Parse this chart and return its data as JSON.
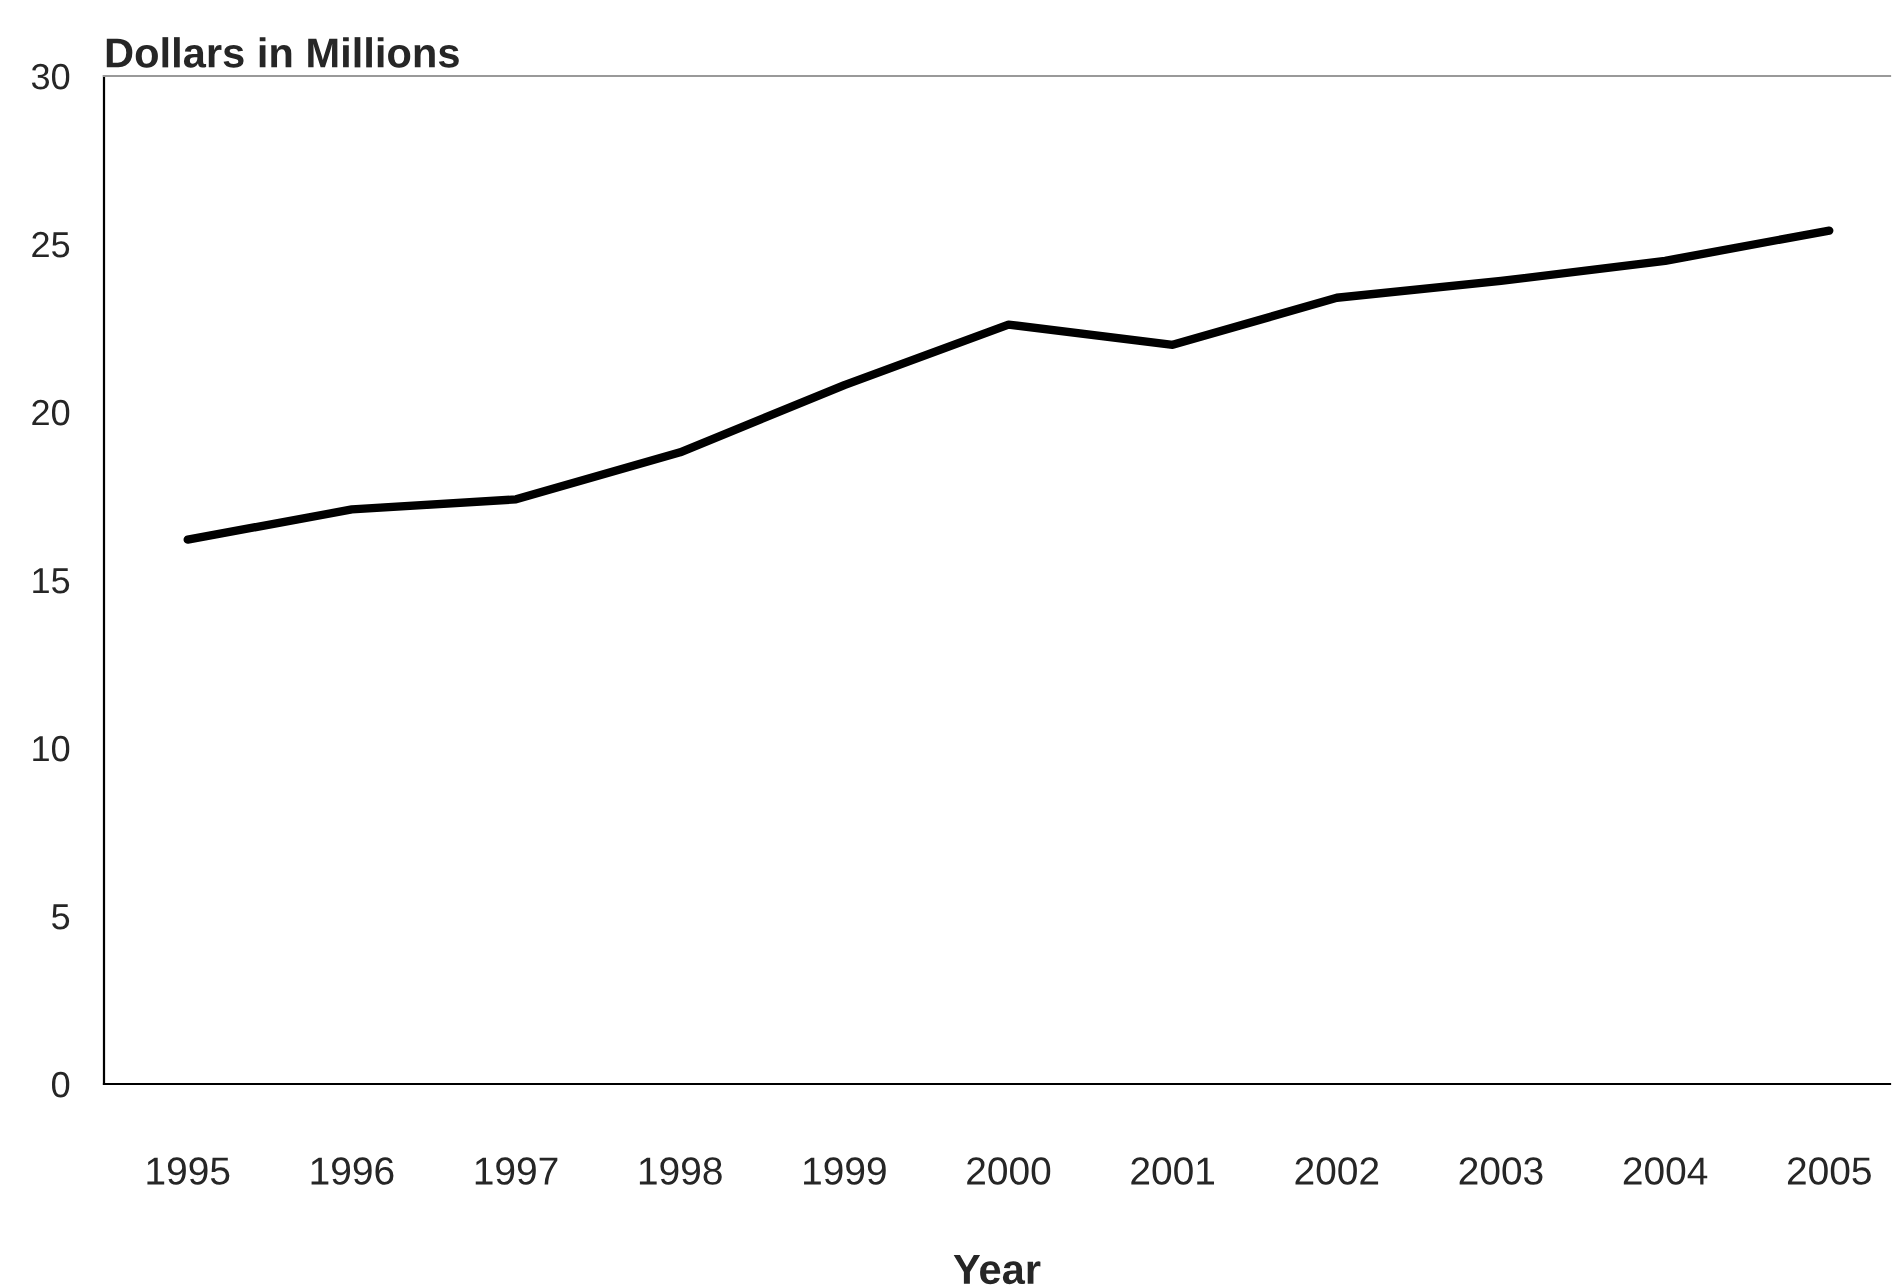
{
  "chart_data": {
    "type": "line",
    "ylabel": "Dollars in Millions",
    "xlabel": "Year",
    "categories": [
      "1995",
      "1996",
      "1997",
      "1998",
      "1999",
      "2000",
      "2001",
      "2002",
      "2003",
      "2004",
      "2005"
    ],
    "series": [
      {
        "color": "#000000",
        "values": [
          16.2,
          17.1,
          17.4,
          18.8,
          20.8,
          22.6,
          22.0,
          23.4,
          23.9,
          24.5,
          25.4
        ]
      }
    ],
    "ylim": [
      0,
      30
    ],
    "yticks": [
      0,
      5,
      10,
      15,
      20,
      25,
      30
    ],
    "grid": false,
    "legend": false,
    "marker": "none",
    "line_style": "solid"
  }
}
